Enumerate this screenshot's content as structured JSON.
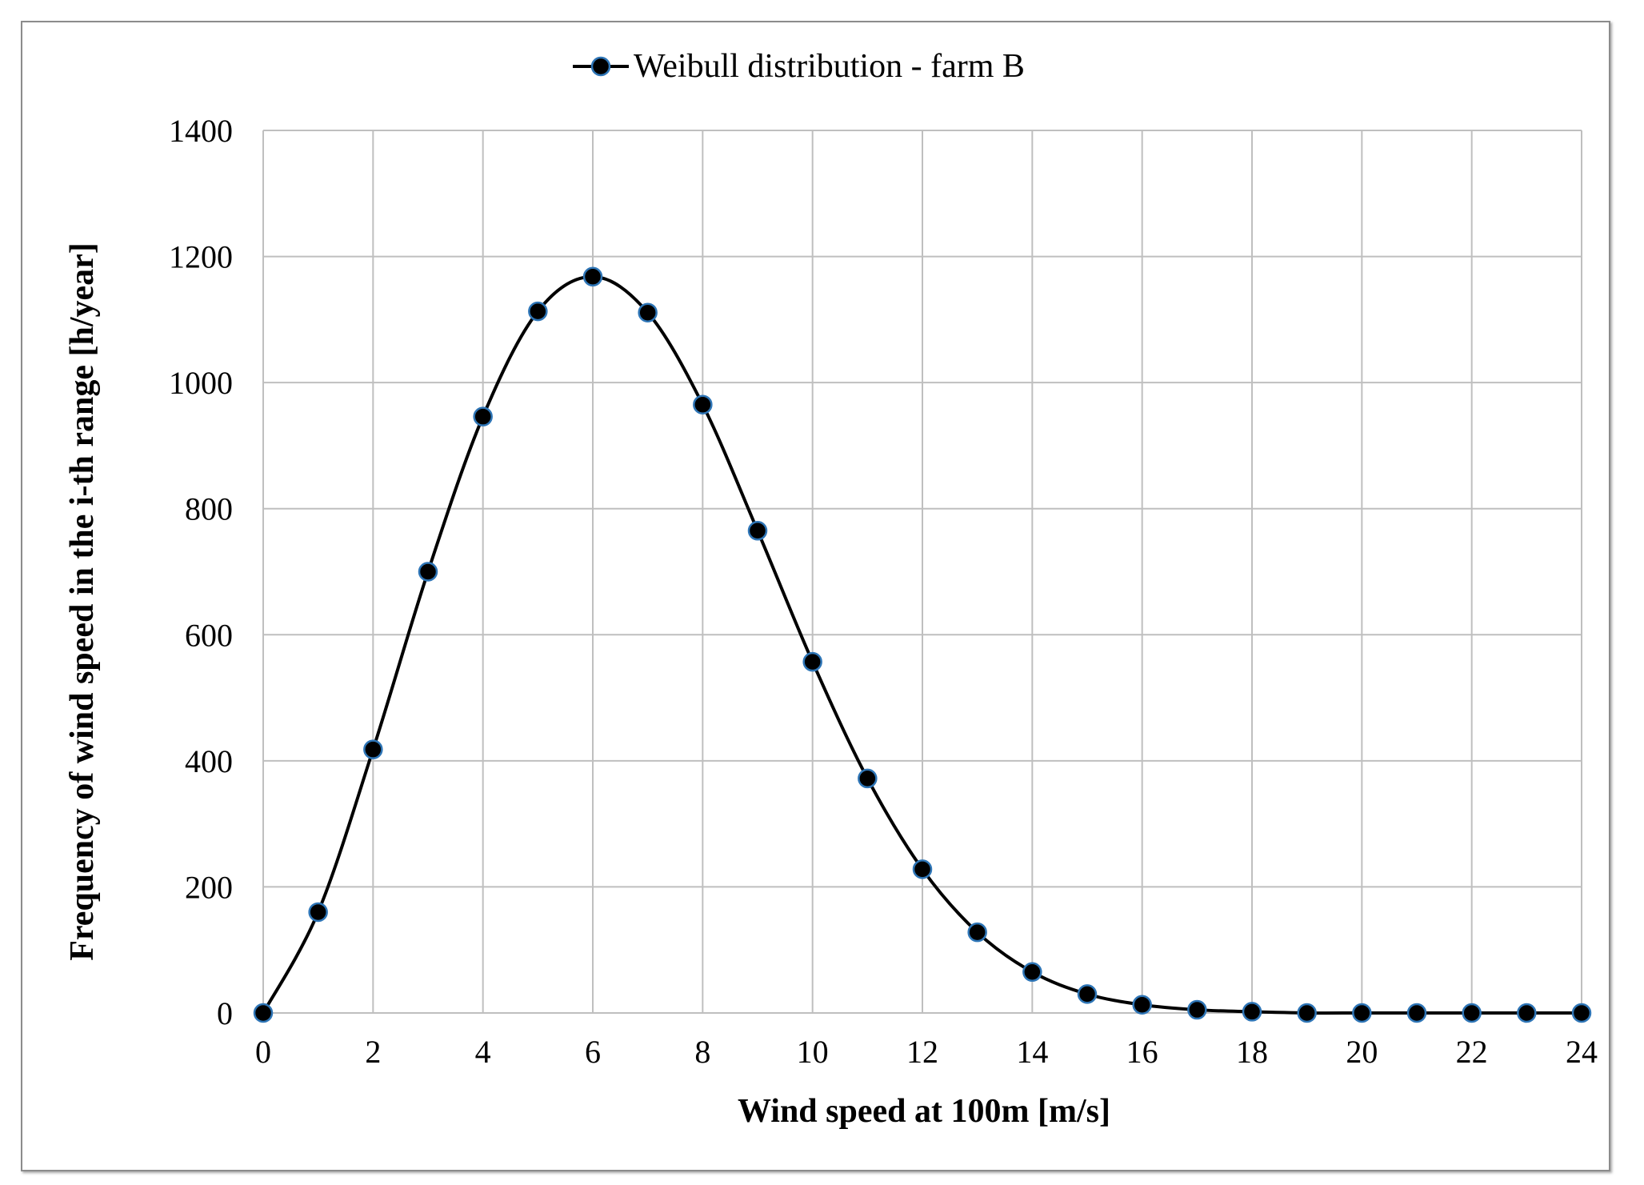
{
  "chart_data": {
    "type": "line",
    "title": "",
    "xlabel": "Wind speed at 100m [m/s]",
    "ylabel": "Frequency of wind speed in the i-th range [h/year]",
    "xlim": [
      0,
      24
    ],
    "ylim": [
      0,
      1400
    ],
    "xticks": [
      0,
      2,
      4,
      6,
      8,
      10,
      12,
      14,
      16,
      18,
      20,
      22,
      24
    ],
    "yticks": [
      0,
      200,
      400,
      600,
      800,
      1000,
      1200,
      1400
    ],
    "grid": true,
    "legend_position": "top-center",
    "series": [
      {
        "name": "Weibull distribution - farm B",
        "line_color": "#000000",
        "marker_color": "#000000",
        "marker_edge_color": "#2e75b6",
        "smooth": true,
        "x": [
          0,
          1,
          2,
          3,
          4,
          5,
          6,
          7,
          8,
          9,
          10,
          11,
          12,
          13,
          14,
          15,
          16,
          17,
          18,
          19,
          20,
          21,
          22,
          23,
          24
        ],
        "y": [
          0,
          160,
          418,
          700,
          946,
          1113,
          1168,
          1111,
          965,
          765,
          557,
          372,
          228,
          128,
          65,
          30,
          13,
          5,
          2,
          0,
          0,
          0,
          0,
          0,
          0
        ]
      }
    ]
  }
}
